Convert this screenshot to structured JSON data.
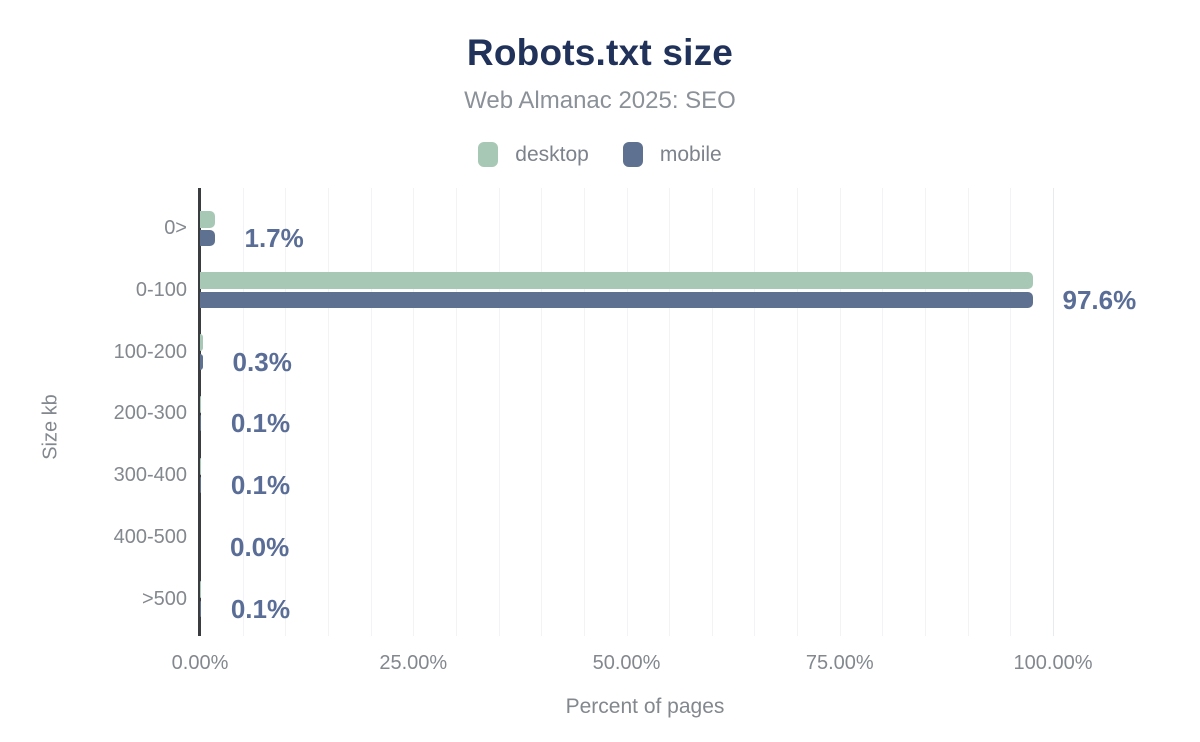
{
  "chart_data": {
    "type": "bar",
    "orientation": "horizontal",
    "title": "Robots.txt size",
    "subtitle": "Web Almanac 2025: SEO",
    "categories": [
      "0>",
      "0-100",
      "100-200",
      "200-300",
      "300-400",
      "400-500",
      ">500"
    ],
    "series": [
      {
        "name": "desktop",
        "color": "#a7c8b4",
        "values": [
          1.8,
          97.7,
          0.3,
          0.1,
          0.1,
          0.0,
          0.1
        ]
      },
      {
        "name": "mobile",
        "color": "#5e7190",
        "values": [
          1.7,
          97.6,
          0.3,
          0.1,
          0.1,
          0.0,
          0.1
        ]
      }
    ],
    "data_labels": [
      "1.7%",
      "97.6%",
      "0.3%",
      "0.1%",
      "0.1%",
      "0.0%",
      "0.1%"
    ],
    "xlabel": "Percent of pages",
    "ylabel": "Size kb",
    "xlim": [
      0,
      100
    ],
    "x_ticks": [
      {
        "value": 0,
        "label": "0.00%"
      },
      {
        "value": 25,
        "label": "25.00%"
      },
      {
        "value": 50,
        "label": "50.00%"
      },
      {
        "value": 75,
        "label": "75.00%"
      },
      {
        "value": 100,
        "label": "100.00%"
      }
    ],
    "grid": {
      "on": true,
      "step": 5
    },
    "legend_position": "top",
    "colors": {
      "title": "#20315a",
      "subtitle": "#8b9198",
      "legend_text": "#7d838c",
      "axis_text": "#83888e",
      "axis_line": "#3a3c40",
      "grid": "#f3f3f6",
      "grid_end": "#e9eaee",
      "value_label": "#596d96"
    }
  }
}
